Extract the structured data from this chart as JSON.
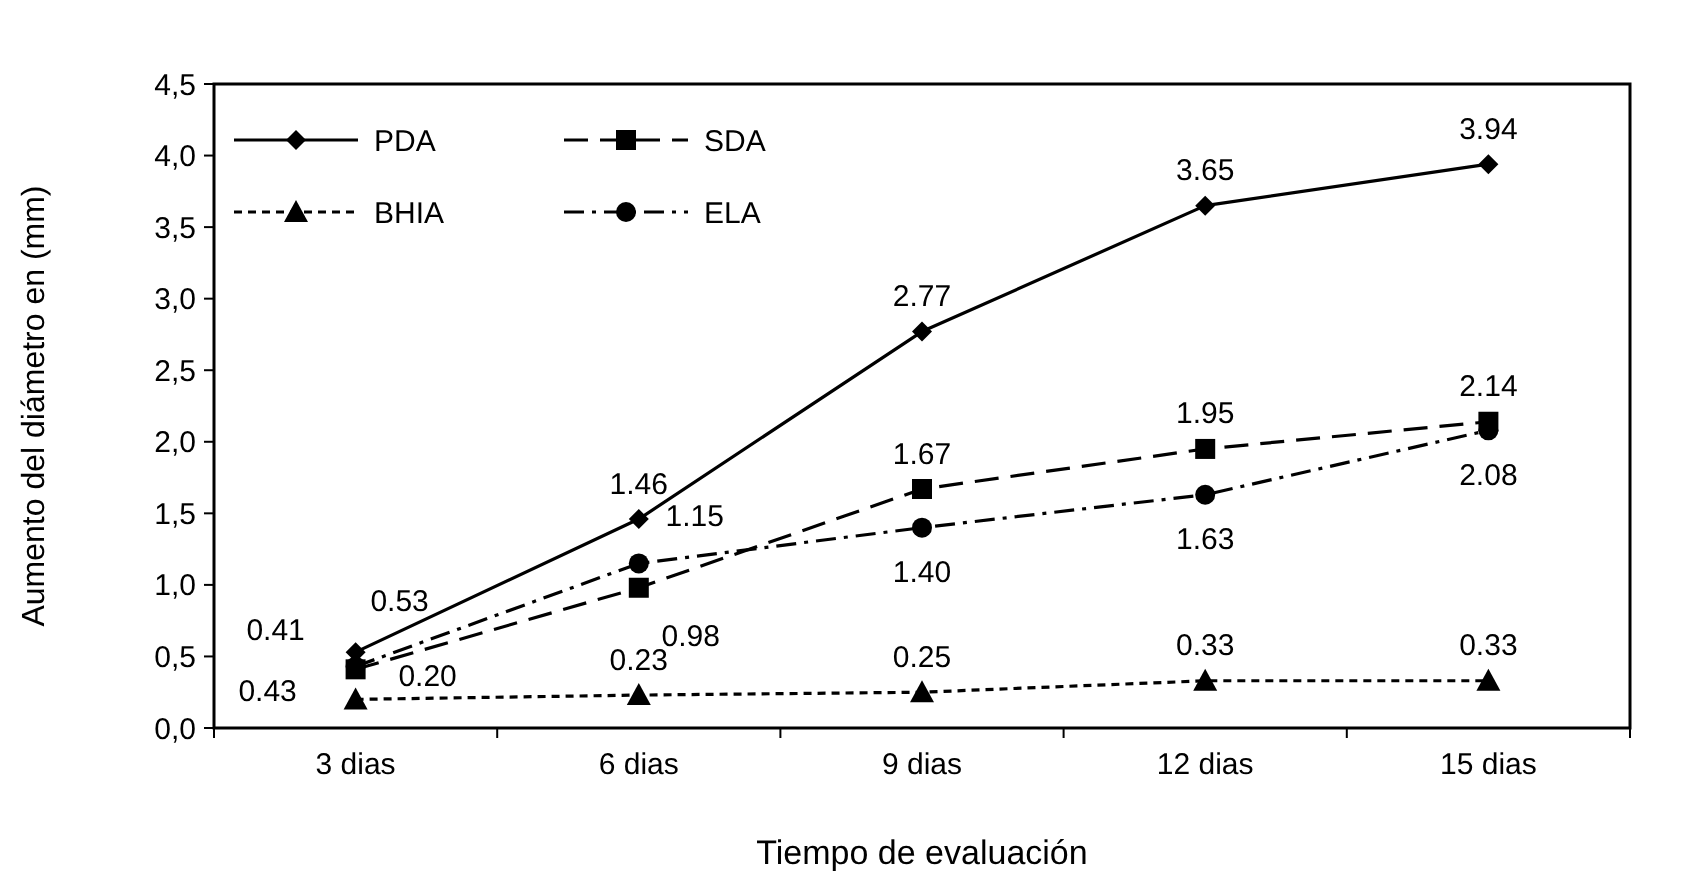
{
  "chart_data": {
    "type": "line",
    "xlabel": "Tiempo de evaluación",
    "ylabel": "Aumento del diámetro en (mm)",
    "categories": [
      "3 dias",
      "6 dias",
      "9 dias",
      "12 dias",
      "15 dias"
    ],
    "series": [
      {
        "name": "PDA",
        "color": "#000000",
        "marker": "diamond",
        "line_style": "solid",
        "values": [
          0.53,
          1.46,
          2.77,
          3.65,
          3.94
        ],
        "value_labels": [
          "0.53",
          "1.46",
          "2.77",
          "3.65",
          "3.94"
        ]
      },
      {
        "name": "SDA",
        "color": "#000000",
        "marker": "square",
        "line_style": "dashed",
        "values": [
          0.41,
          0.98,
          1.67,
          1.95,
          2.14
        ],
        "value_labels": [
          "0.41",
          "0.98",
          "1.67",
          "1.95",
          "2.14"
        ]
      },
      {
        "name": "BHIA",
        "color": "#000000",
        "marker": "triangle",
        "line_style": "dotted",
        "values": [
          0.2,
          0.23,
          0.25,
          0.33,
          0.33
        ],
        "value_labels": [
          "0.20",
          "0.23",
          "0.25",
          "0.33",
          "0.33"
        ]
      },
      {
        "name": "ELA",
        "color": "#000000",
        "marker": "circle",
        "line_style": "dashdot",
        "values": [
          0.43,
          1.15,
          1.4,
          1.63,
          2.08
        ],
        "value_labels": [
          "0.43",
          "1.15",
          "1.40",
          "1.63",
          "2.08"
        ]
      }
    ],
    "ylim": [
      0,
      4.5
    ],
    "yticks": [
      {
        "value": 0,
        "label": "0,0"
      },
      {
        "value": 0.5,
        "label": "0,5"
      },
      {
        "value": 1,
        "label": "1,0"
      },
      {
        "value": 1.5,
        "label": "1,5"
      },
      {
        "value": 2,
        "label": "2,0"
      },
      {
        "value": 2.5,
        "label": "2,5"
      },
      {
        "value": 3,
        "label": "3,0"
      },
      {
        "value": 3.5,
        "label": "3,5"
      },
      {
        "value": 4,
        "label": "4,0"
      },
      {
        "value": 4.5,
        "label": "4,5"
      }
    ],
    "grid": false,
    "legend": "top left"
  }
}
